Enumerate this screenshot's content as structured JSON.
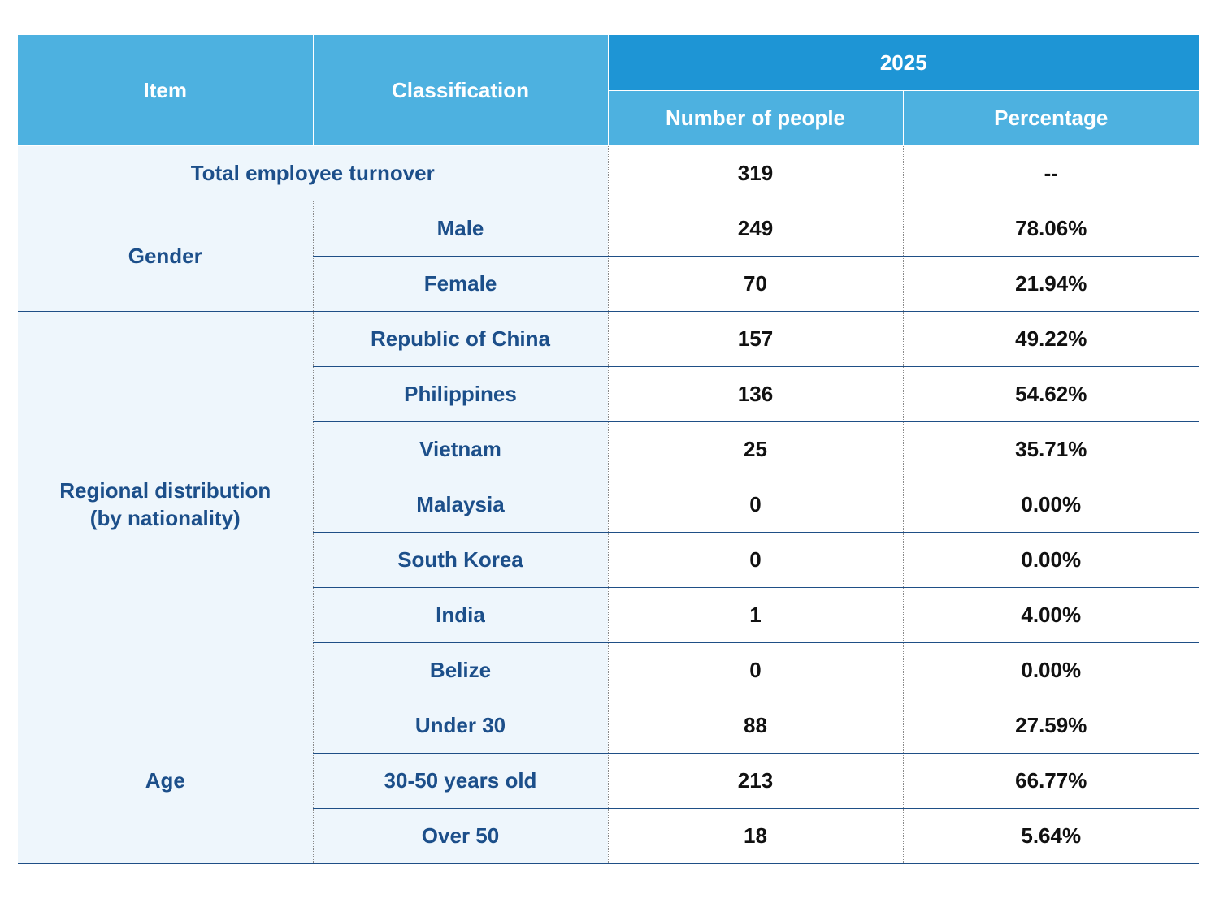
{
  "header": {
    "item": "Item",
    "classification": "Classification",
    "year": "2025",
    "number_of_people": "Number of people",
    "percentage": "Percentage"
  },
  "total": {
    "label": "Total employee turnover",
    "number": "319",
    "percentage": "--"
  },
  "gender": {
    "label": "Gender",
    "rows": [
      {
        "classification": "Male",
        "number": "249",
        "percentage": "78.06%"
      },
      {
        "classification": "Female",
        "number": "70",
        "percentage": "21.94%"
      }
    ]
  },
  "region": {
    "label_line1": "Regional distribution",
    "label_line2": "(by nationality)",
    "rows": [
      {
        "classification": "Republic of China",
        "number": "157",
        "percentage": "49.22%"
      },
      {
        "classification": "Philippines",
        "number": "136",
        "percentage": "54.62%"
      },
      {
        "classification": "Vietnam",
        "number": "25",
        "percentage": "35.71%"
      },
      {
        "classification": "Malaysia",
        "number": "0",
        "percentage": "0.00%"
      },
      {
        "classification": "South Korea",
        "number": "0",
        "percentage": "0.00%"
      },
      {
        "classification": "India",
        "number": "1",
        "percentage": "4.00%"
      },
      {
        "classification": "Belize",
        "number": "0",
        "percentage": "0.00%"
      }
    ]
  },
  "age": {
    "label": "Age",
    "rows": [
      {
        "classification": "Under 30",
        "number": "88",
        "percentage": "27.59%"
      },
      {
        "classification": "30-50 years old",
        "number": "213",
        "percentage": "66.77%"
      },
      {
        "classification": "Over 50",
        "number": "18",
        "percentage": "5.64%"
      }
    ]
  },
  "colors": {
    "header_light": "#4db1e0",
    "header_dark": "#1e95d5",
    "label_bg": "#eef6fc",
    "label_text": "#1c4f8a",
    "rule": "#1f4f86"
  }
}
